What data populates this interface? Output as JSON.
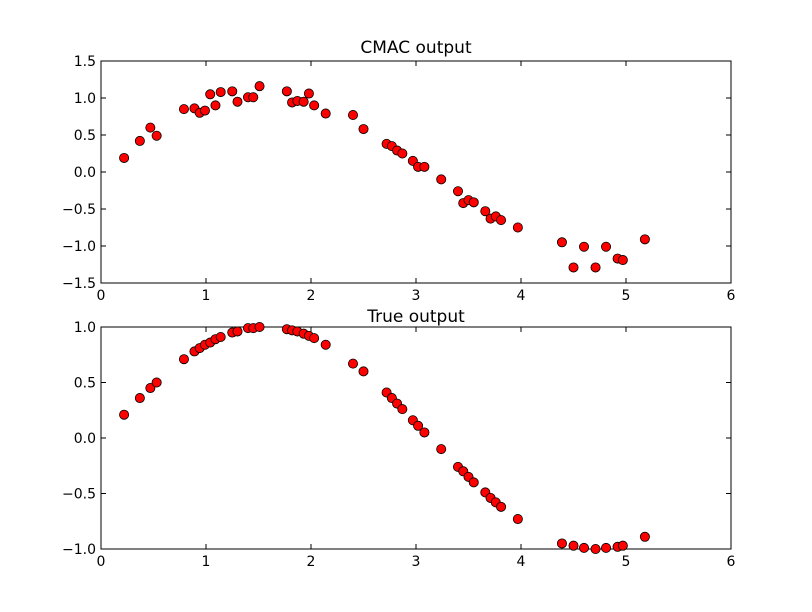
{
  "chart_data": [
    {
      "type": "scatter",
      "title": "CMAC output",
      "xlabel": "",
      "ylabel": "",
      "xlim": [
        0,
        6
      ],
      "ylim": [
        -1.5,
        1.5
      ],
      "grid": false,
      "marker_color": "#ff0000",
      "x_ticks": [
        "0",
        "1",
        "2",
        "3",
        "4",
        "5",
        "6"
      ],
      "y_ticks": [
        "1.5",
        "1.0",
        "0.5",
        "0.0",
        "−0.5",
        "−1.0",
        "−1.5"
      ],
      "series": [
        {
          "x": [
            0.22,
            0.37,
            0.47,
            0.53,
            0.79,
            0.89,
            0.94,
            0.99,
            1.04,
            1.09,
            1.14,
            1.25,
            1.3,
            1.4,
            1.45,
            1.51,
            1.77,
            1.82,
            1.87,
            1.93,
            1.98,
            2.03,
            2.14,
            2.4,
            2.5,
            2.72,
            2.77,
            2.82,
            2.87,
            2.97,
            3.02,
            3.08,
            3.24,
            3.4,
            3.45,
            3.5,
            3.55,
            3.66,
            3.71,
            3.76,
            3.81,
            3.97,
            4.39,
            4.5,
            4.6,
            4.71,
            4.81,
            4.92,
            4.97,
            5.18
          ],
          "y": [
            0.19,
            0.42,
            0.6,
            0.49,
            0.85,
            0.86,
            0.8,
            0.83,
            1.05,
            0.9,
            1.08,
            1.09,
            0.95,
            1.01,
            1.01,
            1.16,
            1.09,
            0.94,
            0.96,
            0.95,
            1.06,
            0.9,
            0.79,
            0.77,
            0.58,
            0.38,
            0.35,
            0.29,
            0.25,
            0.15,
            0.07,
            0.07,
            -0.1,
            -0.26,
            -0.42,
            -0.38,
            -0.41,
            -0.53,
            -0.63,
            -0.6,
            -0.65,
            -0.75,
            -0.95,
            -1.29,
            -1.01,
            -1.29,
            -1.01,
            -1.17,
            -1.19,
            -0.91
          ]
        }
      ]
    },
    {
      "type": "scatter",
      "title": "True output",
      "xlabel": "",
      "ylabel": "",
      "xlim": [
        0,
        6
      ],
      "ylim": [
        -1.0,
        1.0
      ],
      "grid": false,
      "marker_color": "#ff0000",
      "x_ticks": [
        "0",
        "1",
        "2",
        "3",
        "4",
        "5",
        "6"
      ],
      "y_ticks": [
        "1.0",
        "0.5",
        "0.0",
        "−0.5",
        "−1.0"
      ],
      "series": [
        {
          "x": [
            0.22,
            0.37,
            0.47,
            0.53,
            0.79,
            0.89,
            0.94,
            0.99,
            1.04,
            1.09,
            1.14,
            1.25,
            1.3,
            1.4,
            1.45,
            1.51,
            1.77,
            1.82,
            1.87,
            1.93,
            1.98,
            2.03,
            2.14,
            2.4,
            2.5,
            2.72,
            2.77,
            2.82,
            2.87,
            2.97,
            3.02,
            3.08,
            3.24,
            3.4,
            3.45,
            3.5,
            3.55,
            3.66,
            3.71,
            3.76,
            3.81,
            3.97,
            4.39,
            4.5,
            4.6,
            4.71,
            4.81,
            4.92,
            4.97,
            5.18
          ],
          "y": [
            0.21,
            0.36,
            0.45,
            0.5,
            0.71,
            0.78,
            0.81,
            0.84,
            0.86,
            0.89,
            0.91,
            0.95,
            0.96,
            0.99,
            0.99,
            1.0,
            0.98,
            0.97,
            0.96,
            0.94,
            0.92,
            0.9,
            0.84,
            0.67,
            0.6,
            0.41,
            0.36,
            0.31,
            0.26,
            0.16,
            0.11,
            0.05,
            -0.1,
            -0.26,
            -0.3,
            -0.35,
            -0.4,
            -0.49,
            -0.54,
            -0.58,
            -0.62,
            -0.73,
            -0.95,
            -0.97,
            -0.99,
            -1.0,
            -0.99,
            -0.98,
            -0.97,
            -0.89
          ]
        }
      ]
    }
  ]
}
